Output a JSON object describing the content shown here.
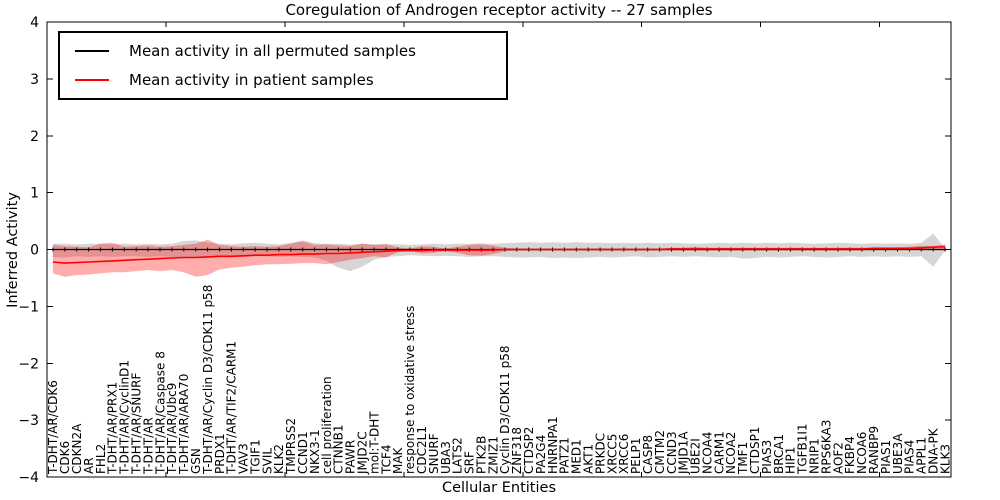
{
  "chart_data": {
    "type": "line",
    "title": "Coregulation of Androgen receptor activity -- 27 samples",
    "xlabel": "Cellular Entities",
    "ylabel": "Inferred Activity",
    "ylim": [
      -4,
      4
    ],
    "yticks": [
      -4,
      -3,
      -2,
      -1,
      0,
      1,
      2,
      3,
      4
    ],
    "xtick_interval": 10,
    "grid": false,
    "legend_position": "upper left",
    "frame_color": "#000000",
    "categories": [
      "T-DHT/AR/CDK6",
      "CDK6",
      "CDKN2A",
      "AR",
      "FHL2",
      "T-DHT/AR/PRX1",
      "T-DHT/AR/CyclinD1",
      "T-DHT/AR/SNURF",
      "T-DHT/AR",
      "T-DHT/AR/Caspase 8",
      "T-DHT/AR/Ubc9",
      "T-DHT/AR/ARA70",
      "GSN",
      "T-DHT/AR/Cyclin D3/CDK11 p58",
      "PRDX1",
      "T-DHT/AR/TIF2/CARM1",
      "VAV3",
      "TGIF1",
      "SVIL",
      "KLK2",
      "TMPRSS2",
      "CCND1",
      "NKX3-1",
      "cell proliferation",
      "CTNNB1",
      "PAWR",
      "JMJD2C",
      "mol:T-DHT",
      "TCF4",
      "MAK",
      "response to oxidative stress",
      "CDC2L1",
      "SNURF",
      "UBA3",
      "LATS2",
      "SRF",
      "PTK2B",
      "ZMIZ1",
      "Cyclin D3/CDK11 p58",
      "ZNF318",
      "CTDSP2",
      "PA2G4",
      "HNRNPA1",
      "PATZ1",
      "MED1",
      "AKT1",
      "PRKDC",
      "XRCC5",
      "XRCC6",
      "PELP1",
      "CASP8",
      "CMTM2",
      "CCND3",
      "JMJD1A",
      "UBE2I",
      "NCOA4",
      "CARM1",
      "NCOA2",
      "TMF1",
      "CTDSP1",
      "PIAS3",
      "BRCA1",
      "HIP1",
      "TGFB1I1",
      "NRIP1",
      "RPS6KA3",
      "AOF2",
      "FKBP4",
      "NCOA6",
      "RANBP9",
      "PIAS1",
      "UBE3A",
      "PIAS4",
      "APPL1",
      "DNA-PK",
      "KLK3"
    ],
    "series": [
      {
        "name": "Mean activity in all permuted samples",
        "color": "#000000",
        "band_color": "rgba(128,128,128,0.32)",
        "marker": "tick",
        "values": [
          0,
          0,
          0,
          0,
          0,
          0,
          0,
          0,
          0,
          0,
          0,
          0,
          0,
          0,
          0,
          0,
          0,
          0,
          0,
          0,
          0,
          0,
          0,
          0,
          0,
          0,
          0,
          0,
          0,
          0,
          0,
          0,
          0,
          0,
          0,
          0,
          0,
          0,
          0,
          0,
          0,
          0,
          0,
          0,
          0,
          0,
          0,
          0,
          0,
          0,
          0,
          0,
          0,
          0,
          0,
          0,
          0,
          0,
          0,
          0,
          0,
          0,
          0,
          0,
          0,
          0,
          0,
          0,
          0,
          0,
          0,
          0,
          0,
          0,
          0,
          0
        ],
        "band_upper": [
          0.1,
          0.1,
          0.09,
          0.1,
          0.1,
          0.09,
          0.1,
          0.09,
          0.1,
          0.09,
          0.1,
          0.15,
          0.16,
          0.12,
          0.1,
          0.09,
          0.11,
          0.12,
          0.1,
          0.09,
          0.12,
          0.16,
          0.11,
          0.1,
          0.1,
          0.09,
          0.1,
          0.09,
          0.1,
          0.09,
          0.08,
          0.09,
          0.1,
          0.09,
          0.1,
          0.1,
          0.11,
          0.1,
          0.11,
          0.12,
          0.13,
          0.12,
          0.13,
          0.12,
          0.13,
          0.12,
          0.12,
          0.11,
          0.12,
          0.11,
          0.12,
          0.11,
          0.12,
          0.11,
          0.1,
          0.11,
          0.12,
          0.11,
          0.12,
          0.11,
          0.12,
          0.11,
          0.12,
          0.11,
          0.1,
          0.11,
          0.12,
          0.11,
          0.1,
          0.11,
          0.1,
          0.11,
          0.1,
          0.12,
          0.28,
          0.02
        ],
        "band_lower": [
          -0.13,
          -0.14,
          -0.12,
          -0.13,
          -0.12,
          -0.13,
          -0.12,
          -0.12,
          -0.13,
          -0.12,
          -0.13,
          -0.14,
          -0.13,
          -0.14,
          -0.12,
          -0.12,
          -0.13,
          -0.12,
          -0.12,
          -0.13,
          -0.12,
          -0.13,
          -0.14,
          -0.2,
          -0.32,
          -0.38,
          -0.3,
          -0.18,
          -0.13,
          -0.12,
          -0.1,
          -0.11,
          -0.12,
          -0.11,
          -0.12,
          -0.13,
          -0.12,
          -0.12,
          -0.13,
          -0.14,
          -0.14,
          -0.13,
          -0.15,
          -0.14,
          -0.15,
          -0.14,
          -0.13,
          -0.14,
          -0.13,
          -0.12,
          -0.14,
          -0.13,
          -0.12,
          -0.13,
          -0.12,
          -0.13,
          -0.14,
          -0.13,
          -0.16,
          -0.15,
          -0.13,
          -0.14,
          -0.13,
          -0.12,
          -0.13,
          -0.14,
          -0.13,
          -0.12,
          -0.13,
          -0.12,
          -0.13,
          -0.12,
          -0.13,
          -0.12,
          -0.3,
          -0.02
        ]
      },
      {
        "name": "Mean activity in patient samples",
        "color": "#ff0000",
        "band_color": "rgba(255,0,0,0.32)",
        "marker": "none",
        "values": [
          -0.22,
          -0.24,
          -0.23,
          -0.22,
          -0.21,
          -0.2,
          -0.19,
          -0.18,
          -0.17,
          -0.16,
          -0.15,
          -0.14,
          -0.14,
          -0.13,
          -0.12,
          -0.12,
          -0.11,
          -0.1,
          -0.1,
          -0.09,
          -0.09,
          -0.08,
          -0.08,
          -0.07,
          -0.07,
          -0.06,
          -0.05,
          -0.04,
          -0.03,
          -0.02,
          -0.02,
          -0.02,
          -0.01,
          -0.01,
          -0.01,
          -0.01,
          -0.01,
          -0.01,
          0.0,
          0.0,
          0.0,
          0.0,
          0.0,
          0.0,
          0.0,
          0.0,
          0.0,
          0.0,
          0.0,
          0.0,
          0.0,
          0.0,
          0.01,
          0.01,
          0.01,
          0.01,
          0.01,
          0.01,
          0.01,
          0.01,
          0.01,
          0.01,
          0.01,
          0.01,
          0.01,
          0.01,
          0.01,
          0.01,
          0.01,
          0.02,
          0.02,
          0.02,
          0.02,
          0.03,
          0.04,
          0.05
        ],
        "band_upper": [
          0.08,
          0.06,
          0.05,
          0.04,
          0.1,
          0.12,
          0.05,
          0.06,
          0.07,
          0.05,
          0.06,
          0.08,
          0.1,
          0.17,
          0.08,
          0.06,
          0.05,
          0.06,
          0.05,
          0.06,
          0.1,
          0.14,
          0.08,
          0.09,
          0.07,
          0.06,
          0.1,
          0.08,
          0.09,
          0.04,
          0.015,
          0.06,
          0.05,
          0.02,
          0.05,
          0.08,
          0.09,
          0.07,
          0.03,
          0.02,
          0.02,
          0.02,
          0.02,
          0.02,
          0.02,
          0.02,
          0.02,
          0.02,
          0.02,
          0.02,
          0.02,
          0.02,
          0.03,
          0.03,
          0.05,
          0.03,
          0.03,
          0.03,
          0.03,
          0.03,
          0.03,
          0.03,
          0.03,
          0.03,
          0.03,
          0.03,
          0.03,
          0.03,
          0.03,
          0.04,
          0.04,
          0.04,
          0.05,
          0.07,
          0.06,
          0.09
        ],
        "band_lower": [
          -0.42,
          -0.48,
          -0.45,
          -0.44,
          -0.42,
          -0.4,
          -0.4,
          -0.38,
          -0.36,
          -0.38,
          -0.36,
          -0.4,
          -0.48,
          -0.45,
          -0.35,
          -0.32,
          -0.3,
          -0.28,
          -0.26,
          -0.26,
          -0.25,
          -0.24,
          -0.24,
          -0.26,
          -0.22,
          -0.18,
          -0.15,
          -0.12,
          -0.14,
          -0.05,
          -0.02,
          -0.07,
          -0.06,
          -0.03,
          -0.06,
          -0.1,
          -0.11,
          -0.08,
          -0.03,
          -0.02,
          -0.02,
          -0.02,
          -0.02,
          -0.02,
          -0.02,
          -0.02,
          -0.02,
          -0.02,
          -0.02,
          -0.02,
          -0.02,
          -0.02,
          -0.02,
          -0.02,
          -0.02,
          -0.02,
          -0.02,
          -0.02,
          -0.02,
          -0.02,
          -0.02,
          -0.02,
          -0.02,
          -0.02,
          -0.02,
          -0.02,
          -0.02,
          -0.02,
          -0.02,
          -0.01,
          -0.01,
          -0.01,
          -0.01,
          -0.01,
          -0.01,
          -0.02
        ]
      }
    ]
  }
}
